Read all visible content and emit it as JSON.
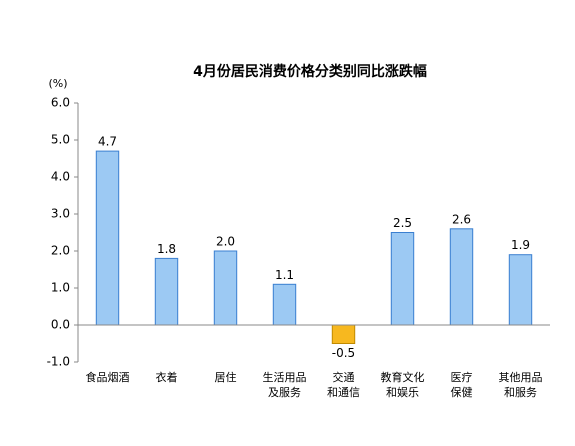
{
  "chart_data": {
    "type": "bar",
    "title": "4月份居民消费价格分类别同比涨跌幅",
    "y_label": "(%)",
    "categories": [
      "食品烟酒",
      "衣着",
      "居住",
      "生活用品\n及服务",
      "交通\n和通信",
      "教育文化\n和娱乐",
      "医疗\n保健",
      "其他用品\n和服务"
    ],
    "values": [
      4.7,
      1.8,
      2.0,
      1.1,
      -0.5,
      2.5,
      2.6,
      1.9
    ],
    "value_labels": [
      "4.7",
      "1.8",
      "2.0",
      "1.1",
      "-0.5",
      "2.5",
      "2.6",
      "1.9"
    ],
    "color": "#9cc9f3",
    "negative_color": "#f7b81f",
    "ylim": [
      -1,
      6
    ],
    "yticks": [
      {
        "value": -1,
        "label": "-1.0"
      },
      {
        "value": 0,
        "label": "0.0"
      },
      {
        "value": 1,
        "label": "1.0"
      },
      {
        "value": 2,
        "label": "2.0"
      },
      {
        "value": 3,
        "label": "3.0"
      },
      {
        "value": 4,
        "label": "4.0"
      },
      {
        "value": 5,
        "label": "5.0"
      },
      {
        "value": 6,
        "label": "6.0"
      }
    ],
    "grid": false
  }
}
